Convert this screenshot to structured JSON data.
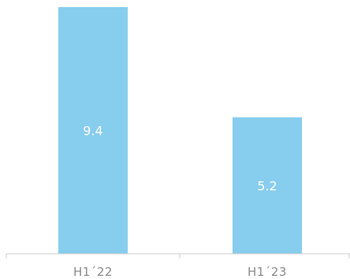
{
  "chart_data": {
    "type": "bar",
    "categories": [
      "H1´22",
      "H1´23"
    ],
    "values": [
      9.4,
      5.2
    ],
    "value_labels": [
      "9.4",
      "5.2"
    ],
    "bar_color": "#87cdee",
    "title": "",
    "xlabel": "",
    "ylabel": "",
    "ylim": [
      0,
      9.4
    ],
    "grid": false,
    "legend": "none"
  }
}
